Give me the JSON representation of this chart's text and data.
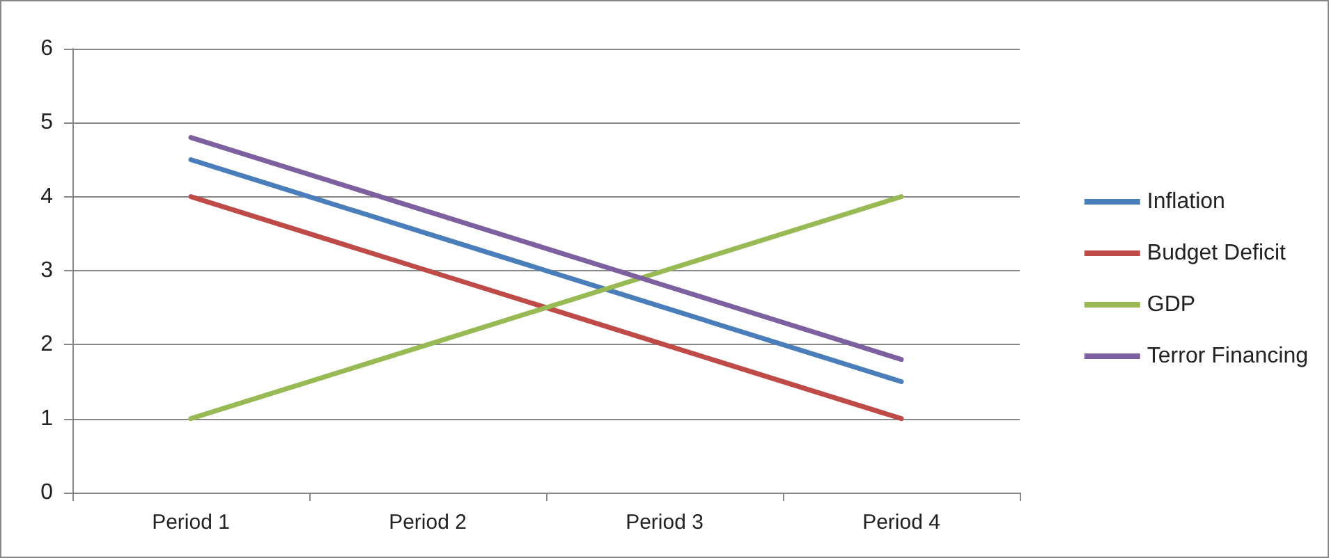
{
  "chart_data": {
    "type": "line",
    "categories": [
      "Period 1",
      "Period 2",
      "Period 3",
      "Period 4"
    ],
    "series": [
      {
        "name": "Inflation",
        "color": "#4a7ebb",
        "values": [
          4.5,
          3.5,
          2.5,
          1.5
        ]
      },
      {
        "name": "Budget Deficit",
        "color": "#be4b48",
        "values": [
          4,
          3,
          2,
          1
        ]
      },
      {
        "name": "GDP",
        "color": "#98b954",
        "values": [
          1,
          2,
          3,
          4
        ]
      },
      {
        "name": "Terror Financing",
        "color": "#7d60a0",
        "values": [
          4.8,
          3.8,
          2.8,
          1.8
        ]
      }
    ],
    "ylim": [
      0,
      6
    ],
    "yticks": [
      0,
      1,
      2,
      3,
      4,
      5,
      6
    ],
    "grid": "y",
    "legend": "right",
    "marker": "none",
    "line_style": "solid"
  }
}
